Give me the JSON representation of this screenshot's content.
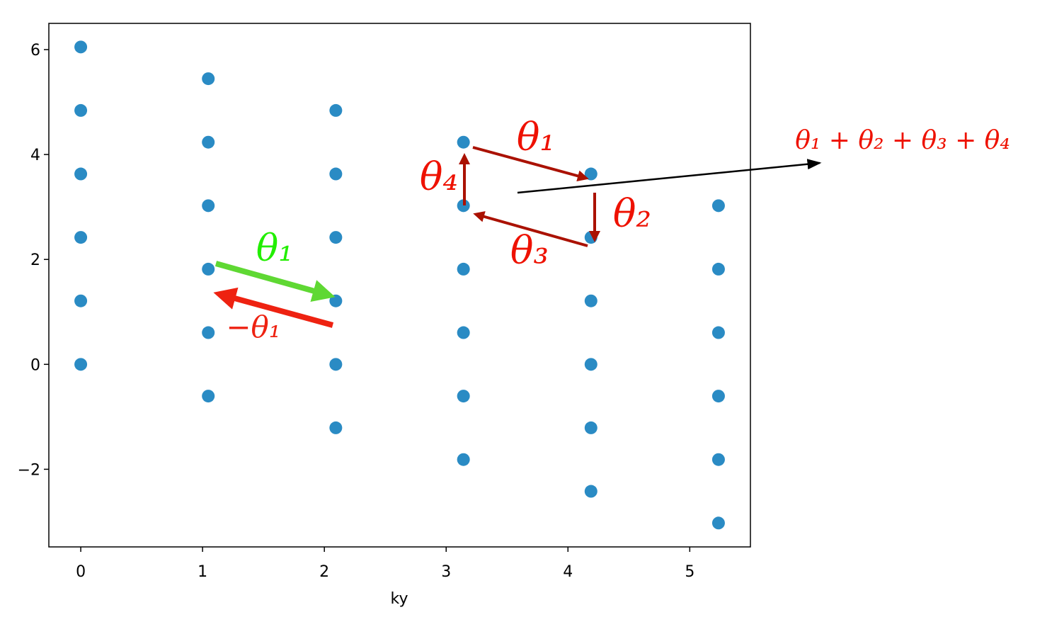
{
  "chart_data": {
    "type": "scatter",
    "x_label": "ky",
    "color": "#2a8bc4",
    "x": [
      0,
      0,
      0,
      0,
      0,
      0,
      1.047,
      1.047,
      1.047,
      1.047,
      1.047,
      1.047,
      2.094,
      2.094,
      2.094,
      2.094,
      2.094,
      2.094,
      3.142,
      3.142,
      3.142,
      3.142,
      3.142,
      3.142,
      4.189,
      4.189,
      4.189,
      4.189,
      4.189,
      4.189,
      5.236,
      5.236,
      5.236,
      5.236,
      5.236,
      5.236
    ],
    "values": [
      0,
      1.21,
      2.42,
      3.63,
      4.84,
      6.05,
      -0.605,
      0.605,
      1.815,
      3.025,
      4.235,
      5.445,
      -1.21,
      0,
      1.21,
      2.42,
      3.63,
      4.84,
      -1.815,
      -0.605,
      0.605,
      1.815,
      3.025,
      4.235,
      -2.42,
      -1.21,
      0,
      1.21,
      2.42,
      3.63,
      -3.025,
      -1.815,
      -0.605,
      0.605,
      1.815,
      3.025
    ],
    "xlim": [
      -0.262,
      5.498
    ],
    "ylim": [
      -3.48,
      6.5
    ],
    "xticks": [
      0,
      1,
      2,
      3,
      4,
      5
    ],
    "yticks": [
      {
        "value": -2,
        "label": "−2"
      },
      0,
      2,
      4,
      6
    ],
    "annotations": [
      "θ₁",
      "−θ₁",
      "θ₁",
      "θ₂",
      "θ₃",
      "θ₄",
      "θ₁ + θ₂ + θ₃ + θ₄"
    ]
  }
}
